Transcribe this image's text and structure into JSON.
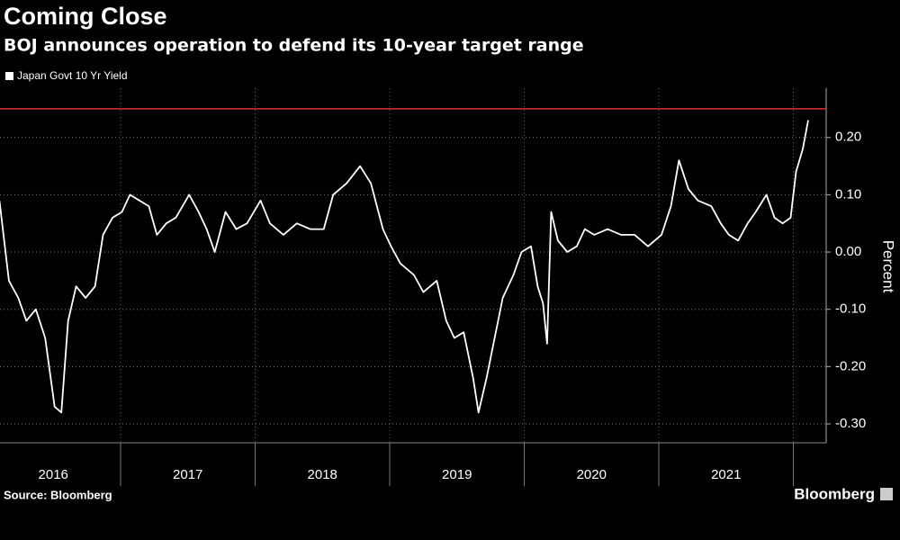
{
  "chart_data": {
    "type": "line",
    "title": "Coming Close",
    "subtitle": "BOJ announces operation to defend its 10-year target range",
    "y_label": "Percent",
    "source": "Source: Bloomberg",
    "brand": "Bloomberg",
    "grid": true,
    "x": [
      2016.1,
      2016.17,
      2016.24,
      2016.3,
      2016.37,
      2016.44,
      2016.51,
      2016.56,
      2016.61,
      2016.67,
      2016.74,
      2016.81,
      2016.87,
      2016.94,
      2017.01,
      2017.07,
      2017.14,
      2017.21,
      2017.27,
      2017.34,
      2017.41,
      2017.51,
      2017.58,
      2017.64,
      2017.7,
      2017.78,
      2017.86,
      2017.94,
      2018.04,
      2018.11,
      2018.21,
      2018.31,
      2018.41,
      2018.51,
      2018.58,
      2018.68,
      2018.78,
      2018.86,
      2018.95,
      2019.01,
      2019.08,
      2019.18,
      2019.25,
      2019.35,
      2019.42,
      2019.48,
      2019.55,
      2019.62,
      2019.66,
      2019.72,
      2019.78,
      2019.84,
      2019.92,
      2019.98,
      2020.05,
      2020.1,
      2020.14,
      2020.17,
      2020.2,
      2020.25,
      2020.32,
      2020.39,
      2020.45,
      2020.52,
      2020.62,
      2020.72,
      2020.82,
      2020.92,
      2021.02,
      2021.09,
      2021.15,
      2021.22,
      2021.29,
      2021.39,
      2021.46,
      2021.52,
      2021.59,
      2021.66,
      2021.72,
      2021.8,
      2021.86,
      2021.92,
      2021.98,
      2022.02,
      2022.07,
      2022.11
    ],
    "series": [
      {
        "name": "Japan Govt 10 Yr Yield",
        "color": "#ffffff",
        "values": [
          0.09,
          -0.05,
          -0.08,
          -0.12,
          -0.1,
          -0.15,
          -0.27,
          -0.28,
          -0.12,
          -0.06,
          -0.08,
          -0.06,
          0.03,
          0.06,
          0.07,
          0.1,
          0.09,
          0.08,
          0.03,
          0.05,
          0.06,
          0.1,
          0.07,
          0.04,
          0.0,
          0.07,
          0.04,
          0.05,
          0.09,
          0.05,
          0.03,
          0.05,
          0.04,
          0.04,
          0.1,
          0.12,
          0.15,
          0.12,
          0.04,
          0.01,
          -0.02,
          -0.04,
          -0.07,
          -0.05,
          -0.12,
          -0.15,
          -0.14,
          -0.22,
          -0.28,
          -0.22,
          -0.15,
          -0.08,
          -0.04,
          0.0,
          0.01,
          -0.06,
          -0.09,
          -0.16,
          0.07,
          0.02,
          0.0,
          0.01,
          0.04,
          0.03,
          0.04,
          0.03,
          0.03,
          0.01,
          0.03,
          0.08,
          0.16,
          0.11,
          0.09,
          0.08,
          0.05,
          0.03,
          0.02,
          0.05,
          0.07,
          0.1,
          0.06,
          0.05,
          0.06,
          0.14,
          0.18,
          0.23
        ]
      }
    ],
    "reference_line": {
      "value": 0.25,
      "color": "#e0303a"
    },
    "xlim": [
      2016.104,
      2022.244
    ],
    "xticks": [
      {
        "value": 2016.5,
        "label": "2016"
      },
      {
        "value": 2017.5,
        "label": "2017"
      },
      {
        "value": 2018.5,
        "label": "2018"
      },
      {
        "value": 2019.5,
        "label": "2019"
      },
      {
        "value": 2020.5,
        "label": "2020"
      },
      {
        "value": 2021.5,
        "label": "2021"
      }
    ],
    "ylim": [
      -0.333,
      0.286
    ],
    "yticks": [
      {
        "value": 0.2,
        "label": "0.20"
      },
      {
        "value": 0.1,
        "label": "0.10"
      },
      {
        "value": 0.0,
        "label": "0.00"
      },
      {
        "value": -0.1,
        "label": "-0.10"
      },
      {
        "value": -0.2,
        "label": "-0.20"
      },
      {
        "value": -0.3,
        "label": "-0.30"
      }
    ]
  }
}
